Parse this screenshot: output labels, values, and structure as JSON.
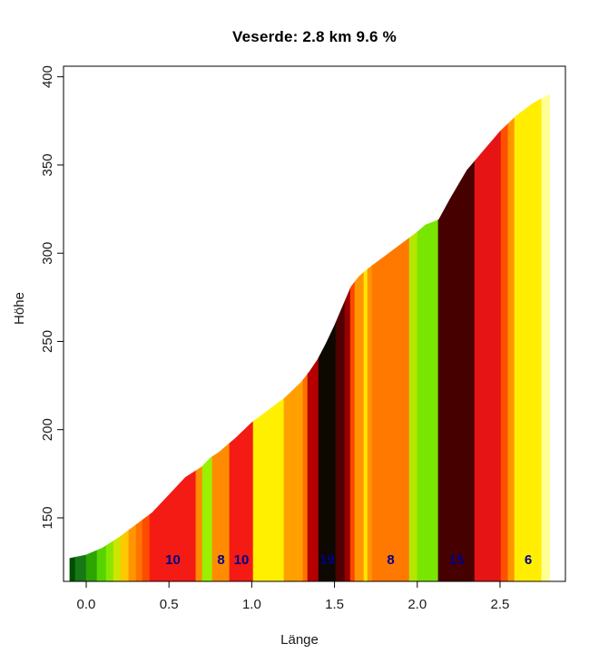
{
  "title": "Veserde: 2.8 km 9.6 %",
  "chart_data": {
    "type": "area",
    "title": "Veserde: 2.8 km 9.6 %",
    "xlabel": "Länge",
    "ylabel": "Höhe",
    "xlim": [
      -0.137,
      2.895
    ],
    "ylim": [
      114,
      406
    ],
    "grid": false,
    "legend": "none",
    "x_ticks": [
      {
        "value": 0.0,
        "label": "0.0"
      },
      {
        "value": 0.5,
        "label": "0.5"
      },
      {
        "value": 1.0,
        "label": "1.0"
      },
      {
        "value": 1.5,
        "label": "1.5"
      },
      {
        "value": 2.0,
        "label": "2.0"
      },
      {
        "value": 2.5,
        "label": "2.5"
      }
    ],
    "y_ticks": [
      {
        "value": 150,
        "label": "150"
      },
      {
        "value": 200,
        "label": "200"
      },
      {
        "value": 250,
        "label": "250"
      },
      {
        "value": 300,
        "label": "300"
      },
      {
        "value": 350,
        "label": "350"
      },
      {
        "value": 400,
        "label": "400"
      }
    ],
    "profile": [
      [
        -0.1,
        127
      ],
      [
        0.0,
        129
      ],
      [
        0.1,
        133
      ],
      [
        0.2,
        139
      ],
      [
        0.3,
        146
      ],
      [
        0.4,
        153
      ],
      [
        0.5,
        163
      ],
      [
        0.6,
        173
      ],
      [
        0.7,
        179
      ],
      [
        0.75,
        184
      ],
      [
        0.8,
        187
      ],
      [
        0.9,
        195
      ],
      [
        1.0,
        204
      ],
      [
        1.1,
        211
      ],
      [
        1.2,
        218
      ],
      [
        1.3,
        227
      ],
      [
        1.35,
        233
      ],
      [
        1.4,
        240
      ],
      [
        1.45,
        249
      ],
      [
        1.5,
        259
      ],
      [
        1.55,
        270
      ],
      [
        1.6,
        281
      ],
      [
        1.65,
        287
      ],
      [
        1.7,
        291
      ],
      [
        1.8,
        298
      ],
      [
        1.9,
        305
      ],
      [
        2.0,
        312
      ],
      [
        2.05,
        316
      ],
      [
        2.13,
        319
      ],
      [
        2.2,
        331
      ],
      [
        2.3,
        347
      ],
      [
        2.4,
        358
      ],
      [
        2.5,
        369
      ],
      [
        2.6,
        378
      ],
      [
        2.7,
        385
      ],
      [
        2.8,
        390
      ]
    ],
    "segments": [
      {
        "from": -0.099,
        "to": -0.066,
        "color": "#004e00"
      },
      {
        "from": -0.066,
        "to": 0.0,
        "color": "#167816"
      },
      {
        "from": 0.0,
        "to": 0.066,
        "color": "#2da400"
      },
      {
        "from": 0.066,
        "to": 0.121,
        "color": "#55d400"
      },
      {
        "from": 0.121,
        "to": 0.165,
        "color": "#8ae600"
      },
      {
        "from": 0.165,
        "to": 0.209,
        "color": "#cde600"
      },
      {
        "from": 0.209,
        "to": 0.257,
        "color": "#ffc800"
      },
      {
        "from": 0.257,
        "to": 0.302,
        "color": "#ff9600"
      },
      {
        "from": 0.302,
        "to": 0.34,
        "color": "#ff7300"
      },
      {
        "from": 0.34,
        "to": 0.384,
        "color": "#ff4b00"
      },
      {
        "from": 0.384,
        "to": 0.663,
        "color": "#f41b14",
        "label": "10"
      },
      {
        "from": 0.663,
        "to": 0.702,
        "color": "#ff8c00"
      },
      {
        "from": 0.702,
        "to": 0.762,
        "color": "#9bf000"
      },
      {
        "from": 0.762,
        "to": 0.866,
        "color": "#ff8c00",
        "label": "8"
      },
      {
        "from": 0.866,
        "to": 1.009,
        "color": "#f41b14",
        "label": "10"
      },
      {
        "from": 1.009,
        "to": 1.195,
        "color": "#fff000"
      },
      {
        "from": 1.195,
        "to": 1.31,
        "color": "#ffa000"
      },
      {
        "from": 1.31,
        "to": 1.338,
        "color": "#ff7000"
      },
      {
        "from": 1.338,
        "to": 1.404,
        "color": "#b40000"
      },
      {
        "from": 1.404,
        "to": 1.508,
        "color": "#0d0800",
        "label": "19"
      },
      {
        "from": 1.508,
        "to": 1.563,
        "color": "#500000"
      },
      {
        "from": 1.563,
        "to": 1.596,
        "color": "#960000"
      },
      {
        "from": 1.596,
        "to": 1.623,
        "color": "#ff4600"
      },
      {
        "from": 1.623,
        "to": 1.678,
        "color": "#ff9600"
      },
      {
        "from": 1.678,
        "to": 1.7,
        "color": "#ffe600"
      },
      {
        "from": 1.7,
        "to": 1.727,
        "color": "#ff9600"
      },
      {
        "from": 1.727,
        "to": 1.952,
        "color": "#ff7800",
        "label": "8"
      },
      {
        "from": 1.952,
        "to": 2.001,
        "color": "#b4e600"
      },
      {
        "from": 2.001,
        "to": 2.127,
        "color": "#78e600"
      },
      {
        "from": 2.127,
        "to": 2.347,
        "color": "#460000",
        "label": "15"
      },
      {
        "from": 2.347,
        "to": 2.506,
        "color": "#e61414"
      },
      {
        "from": 2.506,
        "to": 2.549,
        "color": "#ff5000"
      },
      {
        "from": 2.549,
        "to": 2.588,
        "color": "#ff9600"
      },
      {
        "from": 2.588,
        "to": 2.752,
        "color": "#ffee00",
        "label": "6"
      },
      {
        "from": 2.752,
        "to": 2.8,
        "color": "#ffff96"
      }
    ],
    "segment_label_color": "#00008B",
    "axis_color": "#000000",
    "background": "#ffffff"
  }
}
